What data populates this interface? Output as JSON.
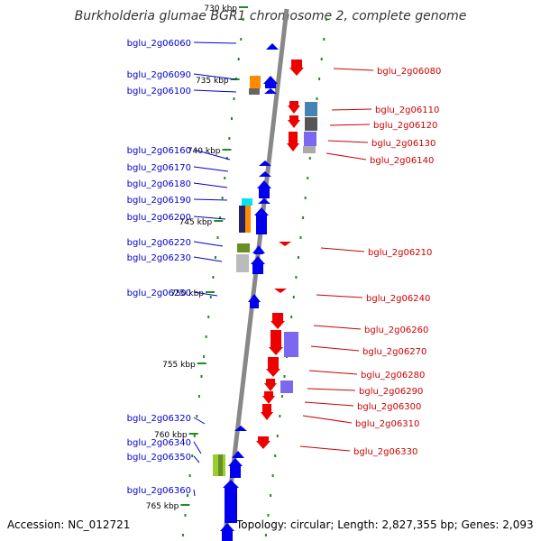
{
  "title": "Burkholderia glumae BGR1 chromosome 2, complete genome",
  "accession_text": "Accession: NC_012721",
  "topology_text": "Topology: circular; Length: 2,827,355 bp; Genes: 2,093",
  "colors": {
    "left_label": "#0000cc",
    "right_label": "#cc0000",
    "forward_gene": "#0000ee",
    "reverse_gene": "#ee0000",
    "backbone": "#888888",
    "tick": "#228b22"
  },
  "scale_marks": [
    "730 kbp",
    "735 kbp",
    "740 kbp",
    "745 kbp",
    "750 kbp",
    "755 kbp",
    "760 kbp",
    "765 kbp"
  ],
  "genes_left": [
    "bglu_2g06060",
    "bglu_2g06090",
    "bglu_2g06100",
    "bglu_2g06160",
    "bglu_2g06170",
    "bglu_2g06180",
    "bglu_2g06190",
    "bglu_2g06200",
    "bglu_2g06220",
    "bglu_2g06230",
    "bglu_2g06250",
    "bglu_2g06320",
    "bglu_2g06340",
    "bglu_2g06350",
    "bglu_2g06360"
  ],
  "genes_right": [
    "bglu_2g06080",
    "bglu_2g06110",
    "bglu_2g06120",
    "bglu_2g06130",
    "bglu_2g06140",
    "bglu_2g06210",
    "bglu_2g06240",
    "bglu_2g06260",
    "bglu_2g06270",
    "bglu_2g06280",
    "bglu_2g06290",
    "bglu_2g06300",
    "bglu_2g06310",
    "bglu_2g06330"
  ]
}
